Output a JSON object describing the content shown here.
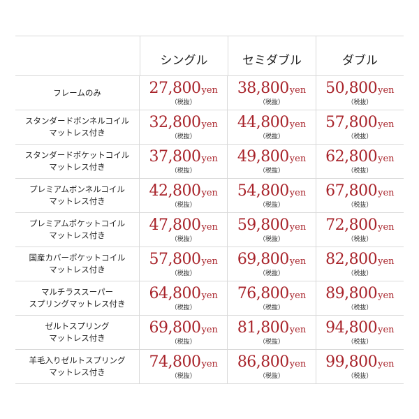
{
  "columns": [
    "シングル",
    "セミダブル",
    "ダブル"
  ],
  "unit": "yen",
  "tax_note": "（税抜）",
  "rows": [
    {
      "label": "フレームのみ",
      "prices": [
        "27,800",
        "38,800",
        "50,800"
      ]
    },
    {
      "label": "スタンダードボンネルコイル\nマットレス付き",
      "prices": [
        "32,800",
        "44,800",
        "57,800"
      ]
    },
    {
      "label": "スタンダードポケットコイル\nマットレス付き",
      "prices": [
        "37,800",
        "49,800",
        "62,800"
      ]
    },
    {
      "label": "プレミアムボンネルコイル\nマットレス付き",
      "prices": [
        "42,800",
        "54,800",
        "67,800"
      ]
    },
    {
      "label": "プレミアムポケットコイル\nマットレス付き",
      "prices": [
        "47,800",
        "59,800",
        "72,800"
      ]
    },
    {
      "label": "国産カバーポケットコイル\nマットレス付き",
      "prices": [
        "57,800",
        "69,800",
        "82,800"
      ]
    },
    {
      "label": "マルチラススーパー\nスプリングマットレス付き",
      "prices": [
        "64,800",
        "76,800",
        "89,800"
      ]
    },
    {
      "label": "ゼルトスプリング\nマットレス付き",
      "prices": [
        "69,800",
        "81,800",
        "94,800"
      ]
    },
    {
      "label": "羊毛入りゼルトスプリング\nマットレス付き",
      "prices": [
        "74,800",
        "86,800",
        "99,800"
      ]
    }
  ]
}
